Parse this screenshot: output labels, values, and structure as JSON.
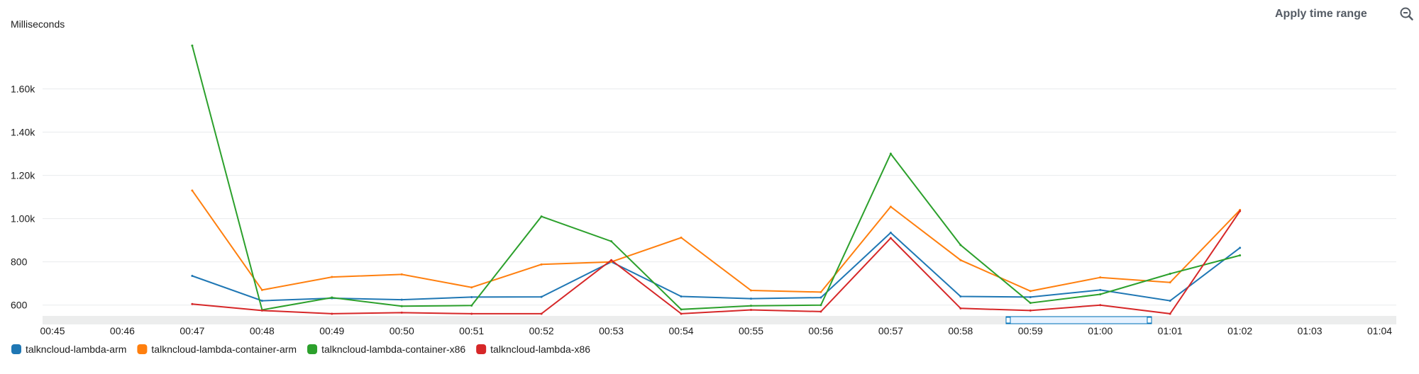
{
  "toolbar": {
    "apply_label": "Apply time range"
  },
  "icons": {
    "zoom": "zoom-out-icon"
  },
  "chart_data": {
    "type": "line",
    "ylabel": "Milliseconds",
    "ylim": [
      550,
      1880
    ],
    "y_ticks": [
      600,
      800,
      1000,
      1200,
      1400,
      1600
    ],
    "y_tick_labels": [
      "600",
      "800",
      "1.00k",
      "1.20k",
      "1.40k",
      "1.60k"
    ],
    "x_labels": [
      "00:45",
      "00:46",
      "00:47",
      "00:48",
      "00:49",
      "00:50",
      "00:51",
      "00:52",
      "00:53",
      "00:54",
      "00:55",
      "00:56",
      "00:57",
      "00:58",
      "00:59",
      "01:00",
      "01:01",
      "01:02",
      "01:03",
      "01:04"
    ],
    "grid": true,
    "legend": "bottom-left",
    "series": [
      {
        "name": "talkncloud-lambda-arm",
        "color": "#1f77b4",
        "x": [
          "00:47",
          "00:48",
          "00:49",
          "00:50",
          "00:51",
          "00:52",
          "00:53",
          "00:54",
          "00:55",
          "00:56",
          "00:57",
          "00:58",
          "00:59",
          "01:00",
          "01:01",
          "01:02"
        ],
        "values": [
          735,
          620,
          632,
          625,
          637,
          638,
          800,
          640,
          630,
          635,
          935,
          640,
          637,
          670,
          620,
          865
        ]
      },
      {
        "name": "talkncloud-lambda-container-arm",
        "color": "#ff7f0e",
        "x": [
          "00:47",
          "00:48",
          "00:49",
          "00:50",
          "00:51",
          "00:52",
          "00:53",
          "00:54",
          "00:55",
          "00:56",
          "00:57",
          "00:58",
          "00:59",
          "01:00",
          "01:01",
          "01:02"
        ],
        "values": [
          1130,
          670,
          730,
          742,
          682,
          788,
          800,
          912,
          668,
          660,
          1055,
          808,
          665,
          728,
          705,
          1040
        ]
      },
      {
        "name": "talkncloud-lambda-container-x86",
        "color": "#2ca02c",
        "x": [
          "00:47",
          "00:48",
          "00:49",
          "00:50",
          "00:51",
          "00:52",
          "00:53",
          "00:54",
          "00:55",
          "00:56",
          "00:57",
          "00:58",
          "00:59",
          "01:00",
          "01:01",
          "01:02"
        ],
        "values": [
          1800,
          578,
          635,
          595,
          598,
          1010,
          895,
          580,
          597,
          600,
          1300,
          878,
          610,
          650,
          745,
          830
        ]
      },
      {
        "name": "talkncloud-lambda-x86",
        "color": "#d62728",
        "x": [
          "00:47",
          "00:48",
          "00:49",
          "00:50",
          "00:51",
          "00:52",
          "00:53",
          "00:54",
          "00:55",
          "00:56",
          "00:57",
          "00:58",
          "00:59",
          "01:00",
          "01:01",
          "01:02"
        ],
        "values": [
          605,
          575,
          560,
          565,
          560,
          560,
          808,
          560,
          578,
          570,
          910,
          585,
          575,
          600,
          560,
          1035
        ]
      }
    ]
  }
}
